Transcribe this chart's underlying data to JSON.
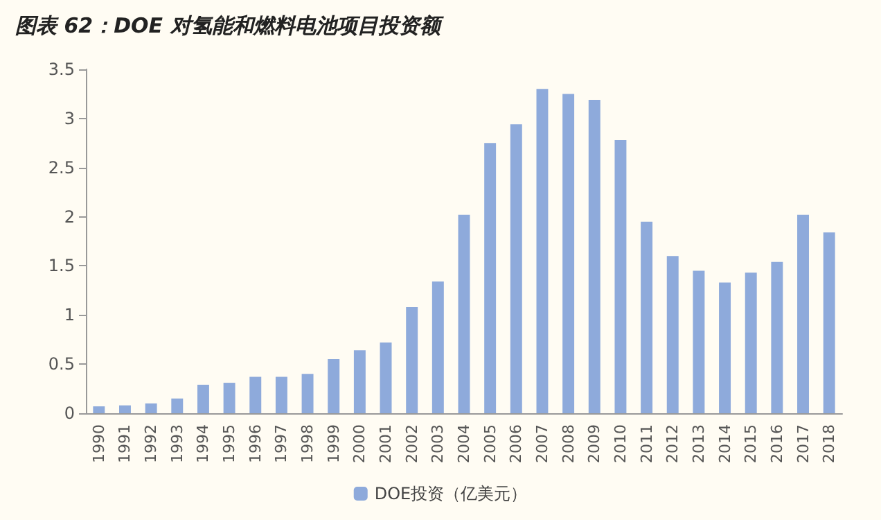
{
  "chart_data": {
    "type": "bar",
    "title": "图表 62：DOE 对氢能和燃料电池项目投资额",
    "categories": [
      "1990",
      "1991",
      "1992",
      "1993",
      "1994",
      "1995",
      "1996",
      "1997",
      "1998",
      "1999",
      "2000",
      "2001",
      "2002",
      "2003",
      "2004",
      "2005",
      "2006",
      "2007",
      "2008",
      "2009",
      "2010",
      "2011",
      "2012",
      "2013",
      "2014",
      "2015",
      "2016",
      "2017",
      "2018"
    ],
    "series": [
      {
        "name": "DOE投资（亿美元）",
        "color": "#8eaadb",
        "values": [
          0.07,
          0.08,
          0.1,
          0.15,
          0.29,
          0.31,
          0.37,
          0.37,
          0.4,
          0.55,
          0.64,
          0.72,
          1.08,
          1.34,
          2.02,
          2.75,
          2.94,
          3.3,
          3.25,
          3.19,
          2.78,
          1.95,
          1.6,
          1.45,
          1.33,
          1.43,
          1.54,
          2.02,
          1.84
        ]
      }
    ],
    "ylim": [
      0,
      3.5
    ],
    "yticks": [
      0,
      0.5,
      1,
      1.5,
      2,
      2.5,
      3,
      3.5
    ],
    "grid": false,
    "legend": "bottom"
  }
}
